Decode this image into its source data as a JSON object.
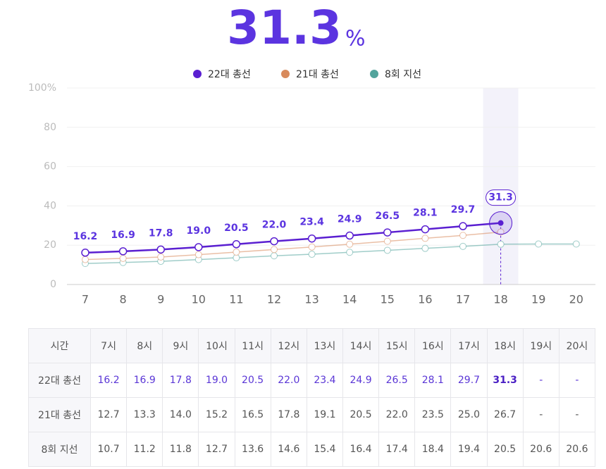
{
  "headline": {
    "value": "31.3",
    "unit": "%"
  },
  "chart_data": {
    "type": "line",
    "categories": [
      "7",
      "8",
      "9",
      "10",
      "11",
      "12",
      "13",
      "14",
      "15",
      "16",
      "17",
      "18",
      "19",
      "20"
    ],
    "series": [
      {
        "name": "22대 총선",
        "color": "#5a1fd1",
        "values": [
          16.2,
          16.9,
          17.8,
          19.0,
          20.5,
          22.0,
          23.4,
          24.9,
          26.5,
          28.1,
          29.7,
          31.3,
          null,
          null
        ],
        "value_labels": [
          "16.2",
          "16.9",
          "17.8",
          "19.0",
          "20.5",
          "22.0",
          "23.4",
          "24.9",
          "26.5",
          "28.1",
          "29.7",
          "31.3",
          null,
          null
        ]
      },
      {
        "name": "21대 총선",
        "color": "#d88a5c",
        "values": [
          12.7,
          13.3,
          14.0,
          15.2,
          16.5,
          17.8,
          19.1,
          20.5,
          22.0,
          23.5,
          25.0,
          26.7,
          null,
          null
        ]
      },
      {
        "name": "8회 지선",
        "color": "#52a49c",
        "values": [
          10.7,
          11.2,
          11.8,
          12.7,
          13.6,
          14.6,
          15.4,
          16.4,
          17.4,
          18.4,
          19.4,
          20.5,
          20.6,
          20.6
        ]
      }
    ],
    "ylim": [
      0,
      100
    ],
    "yticks": [
      0,
      20,
      40,
      60,
      80,
      {
        "value": 100,
        "label": "100%"
      }
    ],
    "grid": true,
    "highlight_index": 11
  },
  "table": {
    "header": [
      "시간",
      "7시",
      "8시",
      "9시",
      "10시",
      "11시",
      "12시",
      "13시",
      "14시",
      "15시",
      "16시",
      "17시",
      "18시",
      "19시",
      "20시"
    ],
    "rows": [
      [
        "22대 총선",
        "16.2",
        "16.9",
        "17.8",
        "19.0",
        "20.5",
        "22.0",
        "23.4",
        "24.9",
        "26.5",
        "28.1",
        "29.7",
        "31.3",
        "-",
        "-"
      ],
      [
        "21대 총선",
        "12.7",
        "13.3",
        "14.0",
        "15.2",
        "16.5",
        "17.8",
        "19.1",
        "20.5",
        "22.0",
        "23.5",
        "25.0",
        "26.7",
        "-",
        "-"
      ],
      [
        "8회 지선",
        "10.7",
        "11.2",
        "11.8",
        "12.7",
        "13.6",
        "14.6",
        "15.4",
        "16.4",
        "17.4",
        "18.4",
        "19.4",
        "20.5",
        "20.6",
        "20.6"
      ]
    ]
  }
}
